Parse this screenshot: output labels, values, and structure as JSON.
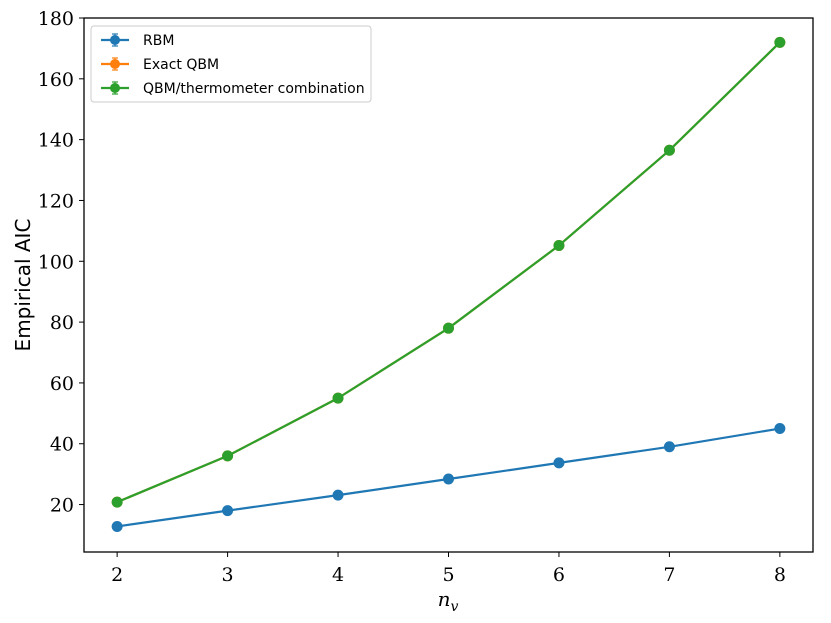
{
  "chart_data": {
    "type": "line",
    "xlabel": "n_v",
    "ylabel": "Empirical AIC",
    "x": [
      2,
      3,
      4,
      5,
      6,
      7,
      8
    ],
    "xlim": [
      1.7,
      8.3
    ],
    "ylim": [
      4.4,
      180
    ],
    "xticks": [
      "2",
      "3",
      "4",
      "5",
      "6",
      "7",
      "8"
    ],
    "yticks": [
      "20",
      "40",
      "60",
      "80",
      "100",
      "120",
      "140",
      "160",
      "180"
    ],
    "legend_position": "top-left",
    "grid": false,
    "series": [
      {
        "name": "RBM",
        "color": "#1f77b4",
        "values": [
          12.8,
          18.0,
          23.1,
          28.4,
          33.7,
          39.0,
          45.0
        ]
      },
      {
        "name": "Exact QBM",
        "color": "#ff7f0e",
        "values": [
          20.8,
          36.0,
          55.0,
          78.0,
          105.2,
          136.5,
          172.0
        ]
      },
      {
        "name": "QBM/thermometer combination",
        "color": "#2ca02c",
        "values": [
          20.8,
          36.0,
          55.0,
          78.0,
          105.2,
          136.5,
          172.0
        ]
      }
    ]
  }
}
